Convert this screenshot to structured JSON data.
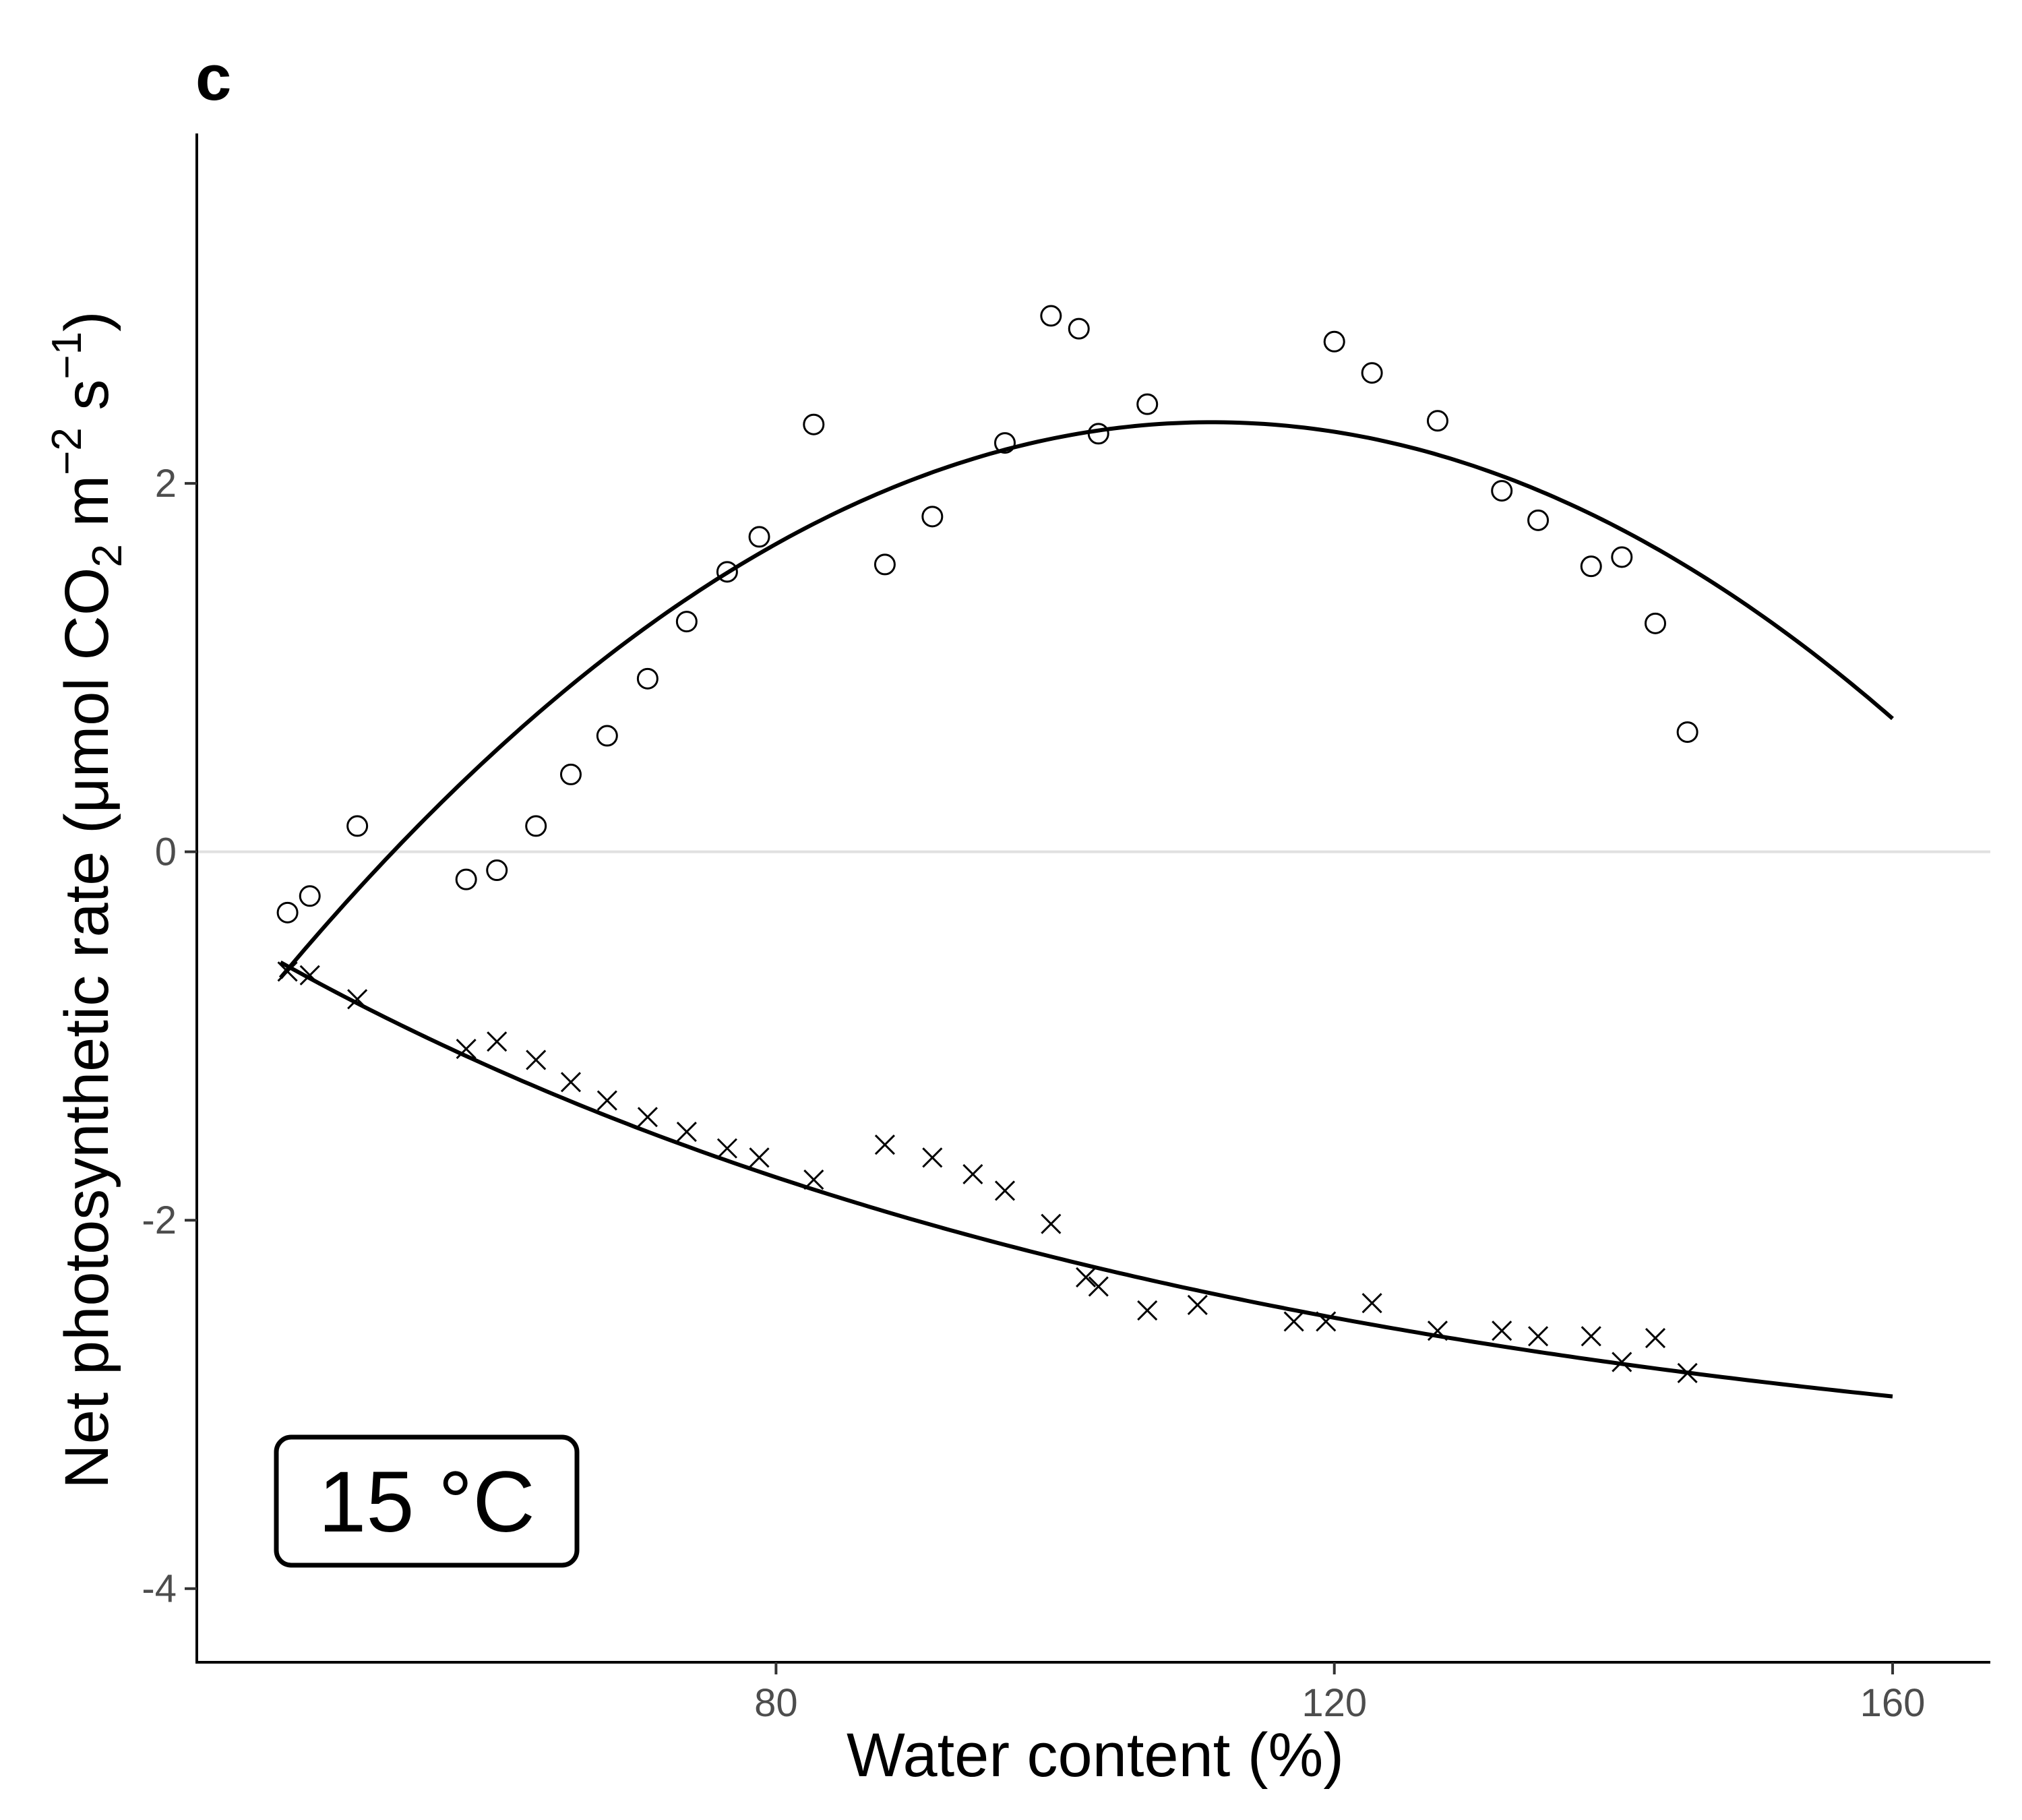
{
  "chart_data": {
    "type": "scatter",
    "panel_label": "c",
    "annotation": "15 °C",
    "xlabel": "Water content (%)",
    "ylabel": "Net photosynthetic rate (μmol CO₂ m⁻² s⁻¹)",
    "ylabel_parts": {
      "pre": "Net photosynthetic rate (μmol CO",
      "sub": "2",
      "mid1": " m",
      "sup1": "−2",
      "mid2": " s",
      "sup2": "−1",
      "post": ")"
    },
    "xlim": [
      38.5,
      167
    ],
    "ylim": [
      -4.4,
      3.9
    ],
    "x_ticks": [
      80,
      120,
      160
    ],
    "y_ticks": [
      -4,
      -2,
      0,
      2
    ],
    "y_tick_labels": [
      "-4",
      "-2",
      "0",
      "2"
    ],
    "zero_line": true,
    "series": [
      {
        "marker": "circle",
        "points": [
          [
            45,
            -0.33
          ],
          [
            46.6,
            -0.24
          ],
          [
            50,
            0.14
          ],
          [
            57.8,
            -0.15
          ],
          [
            60,
            -0.1
          ],
          [
            62.8,
            0.14
          ],
          [
            65.3,
            0.42
          ],
          [
            67.9,
            0.63
          ],
          [
            70.8,
            0.94
          ],
          [
            73.6,
            1.25
          ],
          [
            76.5,
            1.52
          ],
          [
            78.8,
            1.71
          ],
          [
            82.7,
            2.32
          ],
          [
            87.8,
            1.56
          ],
          [
            91.2,
            1.82
          ],
          [
            96.4,
            2.22
          ],
          [
            99.7,
            2.91
          ],
          [
            101.7,
            2.84
          ],
          [
            103.1,
            2.27
          ],
          [
            106.6,
            2.43
          ],
          [
            120,
            2.77
          ],
          [
            122.7,
            2.6
          ],
          [
            127.4,
            2.34
          ],
          [
            132,
            1.96
          ],
          [
            134.6,
            1.8
          ],
          [
            138.4,
            1.55
          ],
          [
            140.6,
            1.6
          ],
          [
            143,
            1.24
          ],
          [
            145.3,
            0.65
          ]
        ],
        "fit": {
          "x_range": [
            44.5,
            160
          ],
          "a": -0.000677,
          "b": 0.15063,
          "c": -6.0463
        }
      },
      {
        "marker": "cross",
        "points": [
          [
            45,
            -0.65
          ],
          [
            46.6,
            -0.67
          ],
          [
            50,
            -0.8
          ],
          [
            57.8,
            -1.07
          ],
          [
            60,
            -1.03
          ],
          [
            62.8,
            -1.13
          ],
          [
            65.3,
            -1.25
          ],
          [
            67.9,
            -1.35
          ],
          [
            70.8,
            -1.44
          ],
          [
            73.6,
            -1.52
          ],
          [
            76.5,
            -1.61
          ],
          [
            78.8,
            -1.66
          ],
          [
            82.7,
            -1.78
          ],
          [
            87.8,
            -1.59
          ],
          [
            91.2,
            -1.66
          ],
          [
            94.1,
            -1.75
          ],
          [
            96.4,
            -1.84
          ],
          [
            99.7,
            -2.02
          ],
          [
            102.2,
            -2.31
          ],
          [
            103.1,
            -2.36
          ],
          [
            106.6,
            -2.49
          ],
          [
            110.2,
            -2.46
          ],
          [
            117.1,
            -2.55
          ],
          [
            119.4,
            -2.55
          ],
          [
            122.7,
            -2.45
          ],
          [
            127.4,
            -2.6
          ],
          [
            132,
            -2.6
          ],
          [
            134.6,
            -2.63
          ],
          [
            138.4,
            -2.63
          ],
          [
            140.6,
            -2.77
          ],
          [
            143,
            -2.64
          ],
          [
            145.3,
            -2.83
          ]
        ],
        "fit": {
          "x_range": [
            44.5,
            160
          ],
          "A": -3.5,
          "B": 2.9,
          "k": 0.0145
        }
      }
    ]
  }
}
